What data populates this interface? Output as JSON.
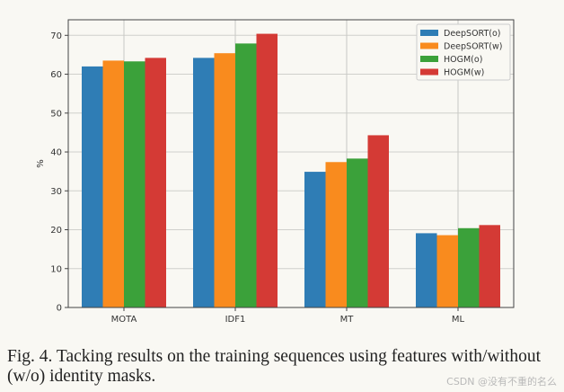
{
  "chart_data": {
    "type": "bar",
    "title": "",
    "xlabel": "",
    "ylabel": "%",
    "ylim": [
      0,
      74
    ],
    "yticks": [
      0,
      10,
      20,
      30,
      40,
      50,
      60,
      70
    ],
    "grid": true,
    "legend_position": "top-right",
    "categories": [
      "MOTA",
      "IDF1",
      "MT",
      "ML"
    ],
    "series": [
      {
        "name": "DeepSORT(o)",
        "color": "#2f7db5",
        "values": [
          62.0,
          64.2,
          34.9,
          19.1
        ]
      },
      {
        "name": "DeepSORT(w)",
        "color": "#f98b1e",
        "values": [
          63.5,
          65.4,
          37.4,
          18.6
        ]
      },
      {
        "name": "HOGM(o)",
        "color": "#3ba13a",
        "values": [
          63.3,
          67.9,
          38.3,
          20.4
        ]
      },
      {
        "name": "HOGM(w)",
        "color": "#d43a35",
        "values": [
          64.2,
          70.4,
          44.3,
          21.2
        ]
      }
    ]
  },
  "caption": "Fig. 4.  Tacking results on the training sequences using features with/without (w/o) identity masks.",
  "watermark": "CSDN @没有不重的名么"
}
